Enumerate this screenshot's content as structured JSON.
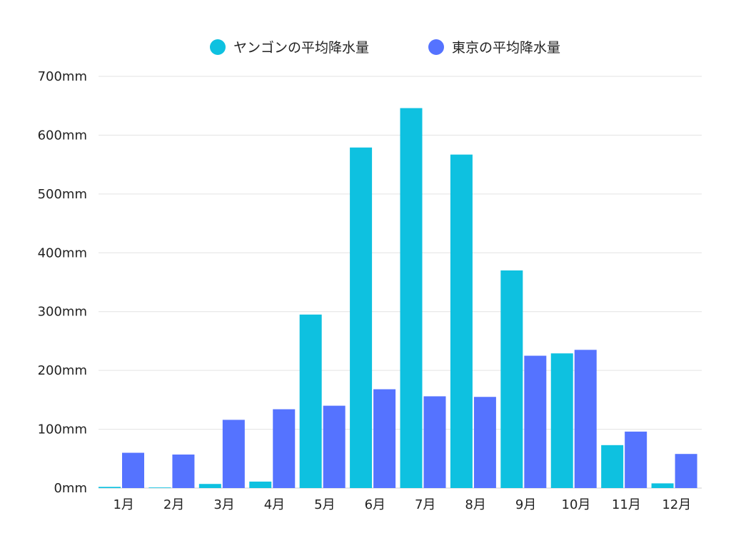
{
  "chart_data": {
    "type": "bar",
    "title": "",
    "xlabel": "",
    "ylabel": "",
    "categories": [
      "1月",
      "2月",
      "3月",
      "4月",
      "5月",
      "6月",
      "7月",
      "8月",
      "9月",
      "10月",
      "11月",
      "12月"
    ],
    "series": [
      {
        "name": "ヤンゴンの平均降水量",
        "color": "#0ec1e0",
        "values": [
          2,
          1,
          7,
          11,
          295,
          579,
          646,
          567,
          370,
          229,
          73,
          8
        ]
      },
      {
        "name": "東京の平均降水量",
        "color": "#5573ff",
        "values": [
          60,
          57,
          116,
          134,
          140,
          168,
          156,
          155,
          225,
          235,
          96,
          58
        ]
      }
    ],
    "ylim": [
      0,
      700
    ],
    "yticks": [
      0,
      100,
      200,
      300,
      400,
      500,
      600,
      700
    ],
    "ytick_labels": [
      "0mm",
      "100mm",
      "200mm",
      "300mm",
      "400mm",
      "500mm",
      "600mm",
      "700mm"
    ],
    "grid": true,
    "legend_position": "top-center"
  }
}
